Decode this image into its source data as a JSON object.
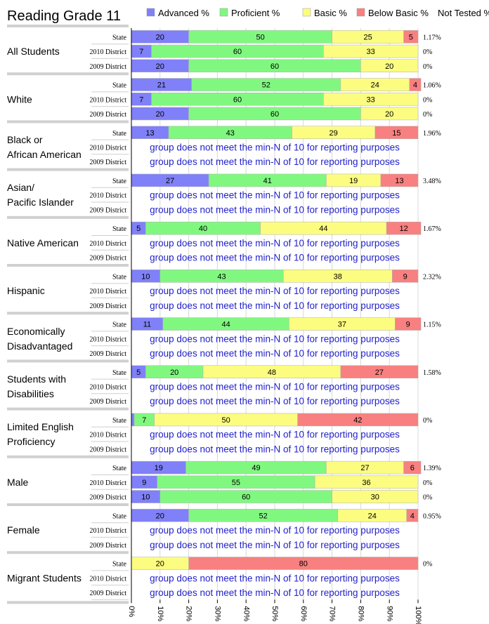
{
  "chart_data": {
    "type": "bar",
    "stacked": "horizontal-100",
    "title": "Reading Grade 11",
    "legend_position": "top",
    "colors": {
      "advanced": "#8080f8",
      "proficient": "#80f880",
      "basic": "#fcfc80",
      "below_basic": "#f88080"
    },
    "series": [
      {
        "key": "advanced",
        "name": "Advanced %"
      },
      {
        "key": "proficient",
        "name": "Proficient %"
      },
      {
        "key": "basic",
        "name": "Basic %"
      },
      {
        "key": "below_basic",
        "name": "Below Basic %"
      }
    ],
    "not_tested_label": "Not Tested %",
    "min_n_message": "group does not meet the min-N of 10 for reporting purposes",
    "x_axis": {
      "range": [
        0,
        100
      ],
      "ticks": [
        "0%",
        "10%",
        "20%",
        "30%",
        "40%",
        "50%",
        "60%",
        "70%",
        "80%",
        "90%",
        "100%"
      ]
    },
    "groups": [
      {
        "label": [
          "All Students"
        ],
        "rows": [
          {
            "label": "State",
            "values": [
              20,
              50,
              25,
              5
            ],
            "not_tested": "1.17%"
          },
          {
            "label": "2010 District",
            "values": [
              7,
              60,
              33,
              0
            ],
            "not_tested": "0%"
          },
          {
            "label": "2009 District",
            "values": [
              20,
              60,
              20,
              0
            ],
            "not_tested": "0%"
          }
        ]
      },
      {
        "label": [
          "White"
        ],
        "rows": [
          {
            "label": "State",
            "values": [
              21,
              52,
              24,
              4
            ],
            "not_tested": "1.06%"
          },
          {
            "label": "2010 District",
            "values": [
              7,
              60,
              33,
              0
            ],
            "not_tested": "0%"
          },
          {
            "label": "2009 District",
            "values": [
              20,
              60,
              20,
              0
            ],
            "not_tested": "0%"
          }
        ]
      },
      {
        "label": [
          "Black or",
          "African American"
        ],
        "rows": [
          {
            "label": "State",
            "values": [
              13,
              43,
              29,
              15
            ],
            "not_tested": "1.96%"
          },
          {
            "label": "2010 District",
            "values": null,
            "not_tested": ""
          },
          {
            "label": "2009 District",
            "values": null,
            "not_tested": ""
          }
        ]
      },
      {
        "label": [
          "Asian/",
          "Pacific Islander"
        ],
        "rows": [
          {
            "label": "State",
            "values": [
              27,
              41,
              19,
              13
            ],
            "not_tested": "3.48%"
          },
          {
            "label": "2010 District",
            "values": null,
            "not_tested": ""
          },
          {
            "label": "2009 District",
            "values": null,
            "not_tested": ""
          }
        ]
      },
      {
        "label": [
          "Native American"
        ],
        "rows": [
          {
            "label": "State",
            "values": [
              5,
              40,
              44,
              12
            ],
            "not_tested": "1.67%"
          },
          {
            "label": "2010 District",
            "values": null,
            "not_tested": ""
          },
          {
            "label": "2009 District",
            "values": null,
            "not_tested": ""
          }
        ]
      },
      {
        "label": [
          "Hispanic"
        ],
        "rows": [
          {
            "label": "State",
            "values": [
              10,
              43,
              38,
              9
            ],
            "not_tested": "2.32%"
          },
          {
            "label": "2010 District",
            "values": null,
            "not_tested": ""
          },
          {
            "label": "2009 District",
            "values": null,
            "not_tested": ""
          }
        ]
      },
      {
        "label": [
          "Economically",
          "Disadvantaged"
        ],
        "rows": [
          {
            "label": "State",
            "values": [
              11,
              44,
              37,
              9
            ],
            "not_tested": "1.15%"
          },
          {
            "label": "2010 District",
            "values": null,
            "not_tested": ""
          },
          {
            "label": "2009 District",
            "values": null,
            "not_tested": ""
          }
        ]
      },
      {
        "label": [
          "Students with",
          "Disabilities"
        ],
        "rows": [
          {
            "label": "State",
            "values": [
              5,
              20,
              48,
              27
            ],
            "not_tested": "1.58%"
          },
          {
            "label": "2010 District",
            "values": null,
            "not_tested": ""
          },
          {
            "label": "2009 District",
            "values": null,
            "not_tested": ""
          }
        ]
      },
      {
        "label": [
          "Limited English",
          "Proficiency"
        ],
        "rows": [
          {
            "label": "State",
            "values": [
              1,
              7,
              50,
              42
            ],
            "not_tested": "0%"
          },
          {
            "label": "2010 District",
            "values": null,
            "not_tested": ""
          },
          {
            "label": "2009 District",
            "values": null,
            "not_tested": ""
          }
        ]
      },
      {
        "label": [
          "Male"
        ],
        "rows": [
          {
            "label": "State",
            "values": [
              19,
              49,
              27,
              6
            ],
            "not_tested": "1.39%"
          },
          {
            "label": "2010 District",
            "values": [
              9,
              55,
              36,
              0
            ],
            "not_tested": "0%"
          },
          {
            "label": "2009 District",
            "values": [
              10,
              60,
              30,
              0
            ],
            "not_tested": "0%"
          }
        ]
      },
      {
        "label": [
          "Female"
        ],
        "rows": [
          {
            "label": "State",
            "values": [
              20,
              52,
              24,
              4
            ],
            "not_tested": "0.95%"
          },
          {
            "label": "2010 District",
            "values": null,
            "not_tested": ""
          },
          {
            "label": "2009 District",
            "values": null,
            "not_tested": ""
          }
        ]
      },
      {
        "label": [
          "Migrant Students"
        ],
        "rows": [
          {
            "label": "State",
            "values": [
              0,
              0,
              20,
              80
            ],
            "not_tested": "0%"
          },
          {
            "label": "2010 District",
            "values": null,
            "not_tested": ""
          },
          {
            "label": "2009 District",
            "values": null,
            "not_tested": ""
          }
        ]
      }
    ]
  }
}
